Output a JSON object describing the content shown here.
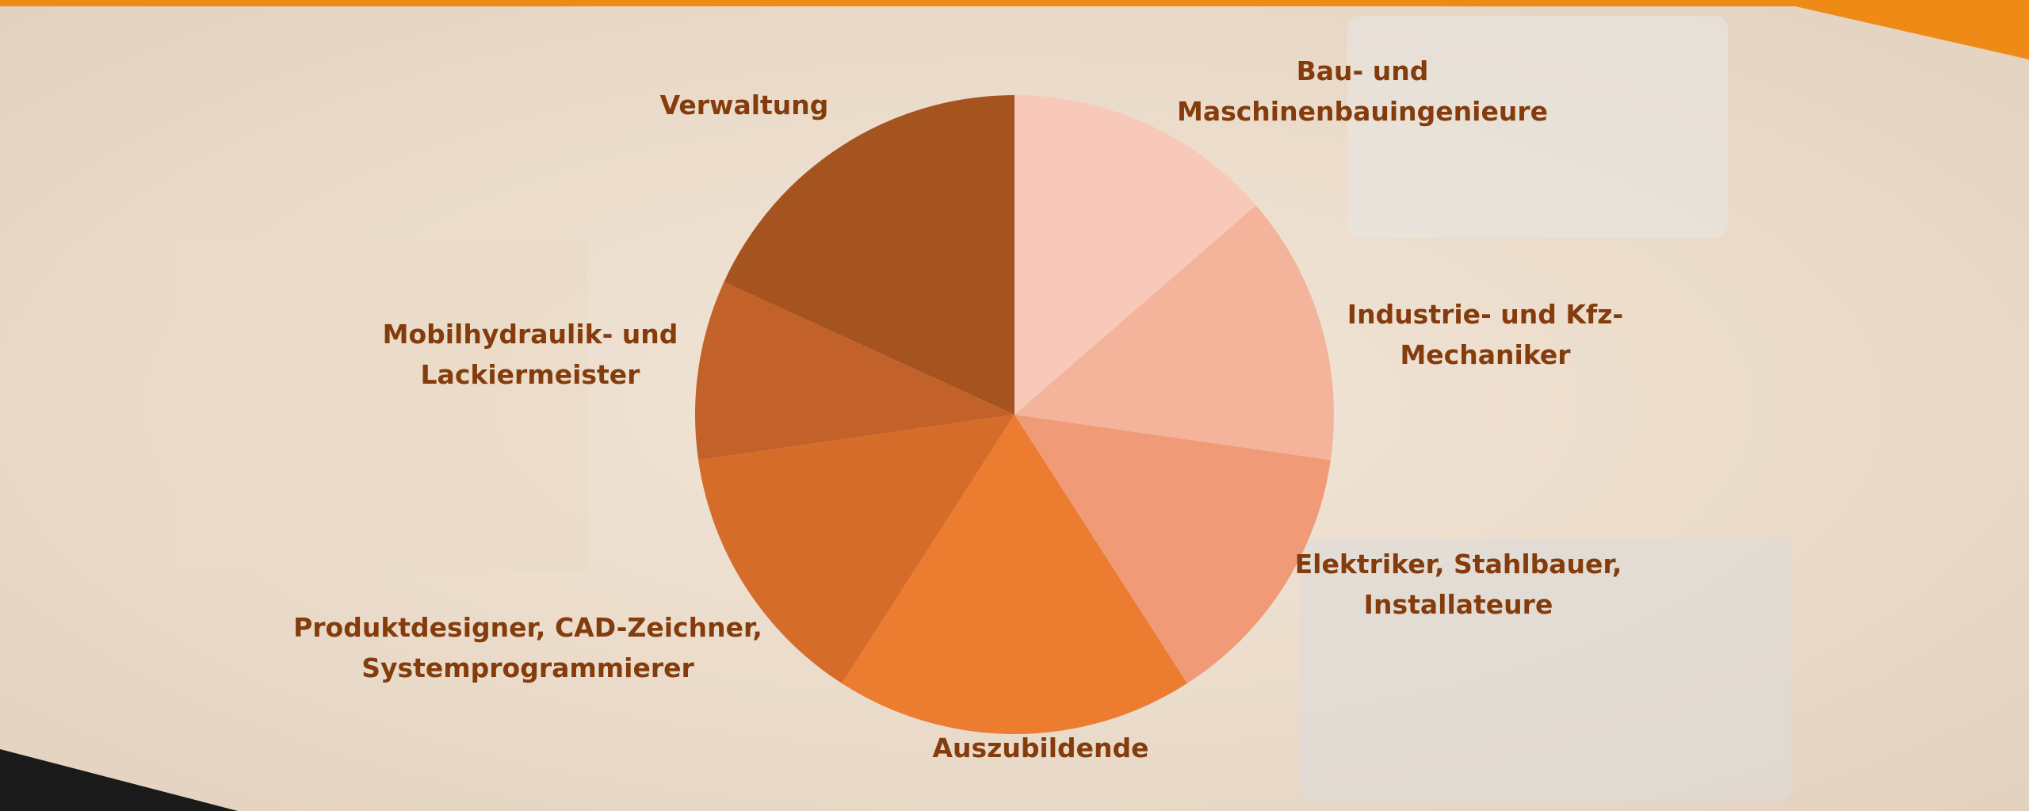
{
  "chart_data": {
    "type": "pie",
    "categories": [
      "Bau- und\nMaschinenbauingenieure",
      "Industrie- und Kfz-\nMechaniker",
      "Elektriker, Stahlbauer,\nInstallateure",
      "Auszubildende",
      "Produktdesigner, CAD-Zeichner,\nSystemprogrammierer",
      "Mobilhydraulik- und\nLackiermeister",
      "Verwaltung"
    ],
    "values": [
      3,
      3,
      3,
      4,
      3,
      2,
      4
    ],
    "colors": [
      "#f8c9b8",
      "#f4b49c",
      "#f09a77",
      "#ec7c30",
      "#d56c2a",
      "#c2622a",
      "#a5531f"
    ]
  }
}
